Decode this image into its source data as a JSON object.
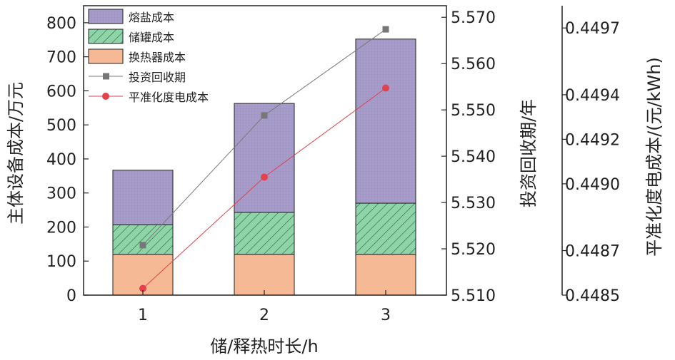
{
  "chart_data": {
    "type": "bar",
    "stacked": true,
    "categories": [
      "1",
      "2",
      "3"
    ],
    "series": [
      {
        "name": "换热器成本",
        "values": [
          120,
          120,
          120
        ],
        "color": "#f5b995",
        "axis": "left",
        "kind": "bar"
      },
      {
        "name": "储罐成本",
        "values": [
          87,
          123,
          150
        ],
        "color": "#8fd3a8",
        "axis": "left",
        "kind": "bar",
        "hatch": true
      },
      {
        "name": "熔盐成本",
        "values": [
          160,
          320,
          482
        ],
        "color": "#a79cc9",
        "axis": "left",
        "kind": "bar"
      },
      {
        "name": "投资回收期",
        "values": [
          5.5208,
          5.5488,
          5.5674
        ],
        "color": "#777777",
        "axis": "right1",
        "kind": "line",
        "marker": "square"
      },
      {
        "name": "平准化度电成本",
        "values": [
          0.44853,
          0.44903,
          0.44943
        ],
        "color": "#e2434b",
        "axis": "right2",
        "kind": "line",
        "marker": "circle"
      }
    ],
    "legend_order": [
      "熔盐成本",
      "储罐成本",
      "换热器成本",
      "投资回收期",
      "平准化度电成本"
    ],
    "legend_position": "top-left",
    "xlabel": "储/释热时长/h",
    "ylabel": "主体设备成本/万元",
    "ylim": [
      0,
      850
    ],
    "yticks": [
      "0",
      "100",
      "200",
      "300",
      "400",
      "500",
      "600",
      "700",
      "800"
    ],
    "y2label": "投资回收期/年",
    "y2lim": [
      5.51,
      5.5725
    ],
    "y2ticks": [
      "5.510",
      "5.520",
      "5.530",
      "5.540",
      "5.550",
      "5.560",
      "5.570"
    ],
    "y3label": "平准化度电成本/(元/kWh)",
    "y3lim": [
      0.4485,
      0.4498
    ],
    "y3ticks": [
      "0.4485",
      "0.4487",
      "0.4490",
      "0.4492",
      "0.4494",
      "0.4497"
    ],
    "grid": false
  }
}
